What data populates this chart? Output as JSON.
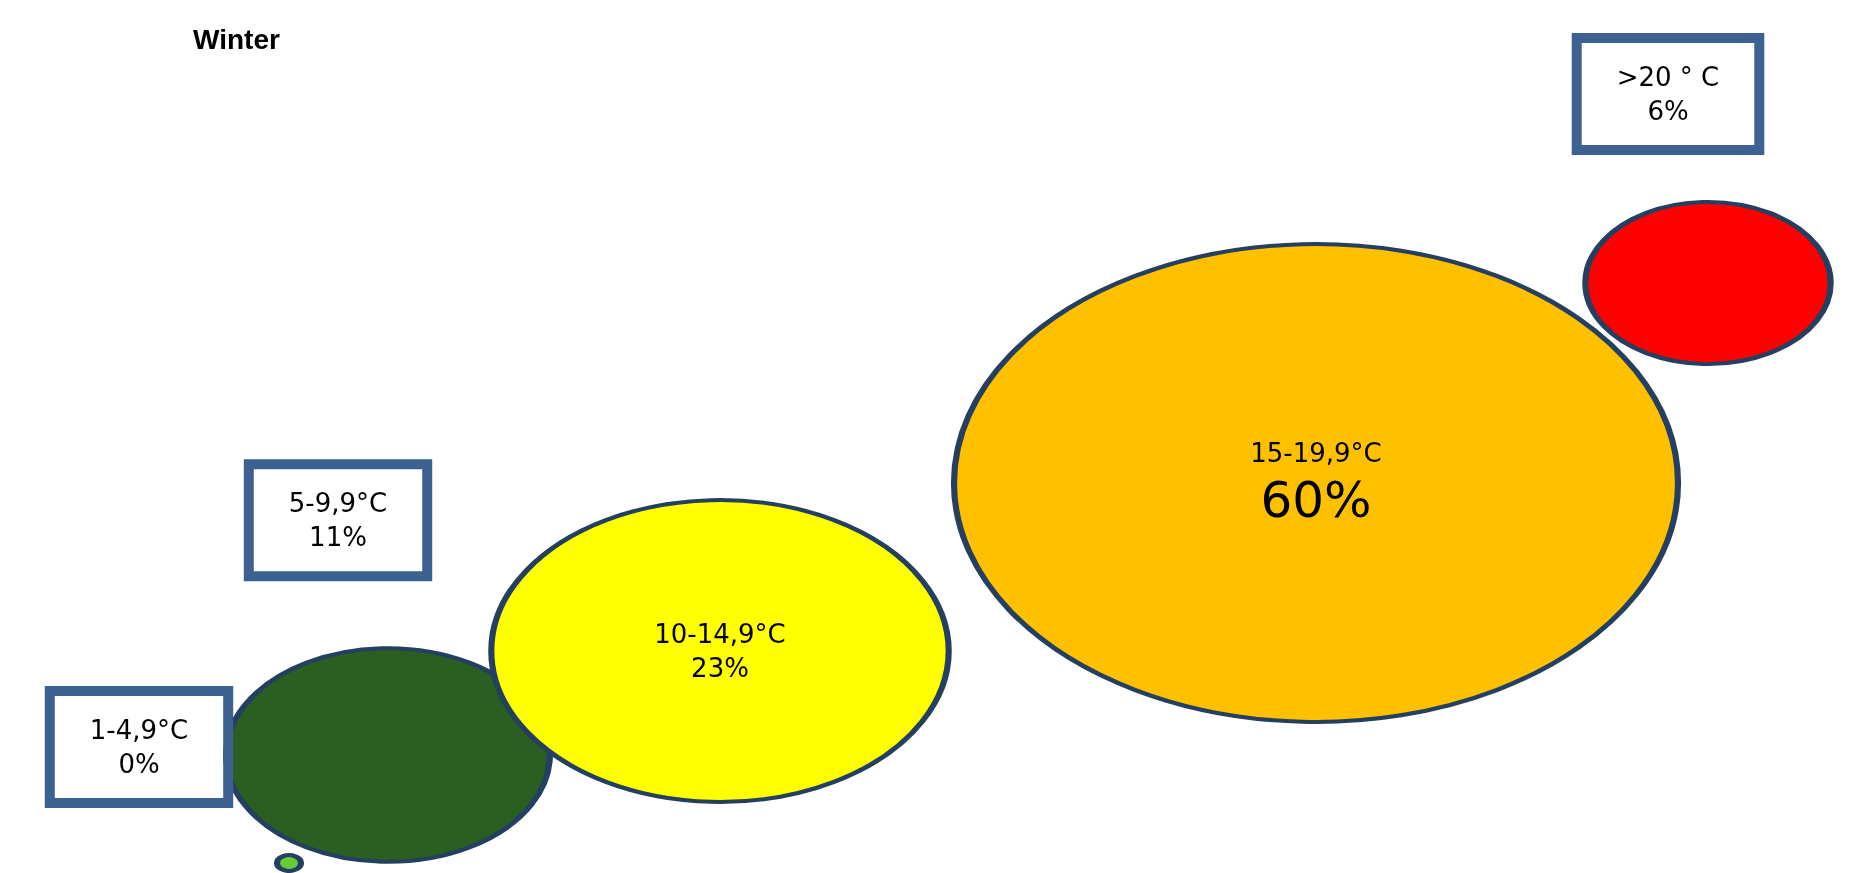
{
  "chart_data": {
    "type": "other",
    "title": "Winter",
    "categories": [
      "1-4,9°C",
      "5-9,9°C",
      "10-14,9°C",
      "15-19,9°C",
      ">20 ° C"
    ],
    "values": [
      0,
      11,
      23,
      60,
      6
    ],
    "value_labels": [
      "0%",
      "11%",
      "23%",
      "60%",
      "6%"
    ],
    "colors": [
      "#66cc33",
      "#2b5f22",
      "#ffff00",
      "#ffc000",
      "#ff0000"
    ]
  }
}
